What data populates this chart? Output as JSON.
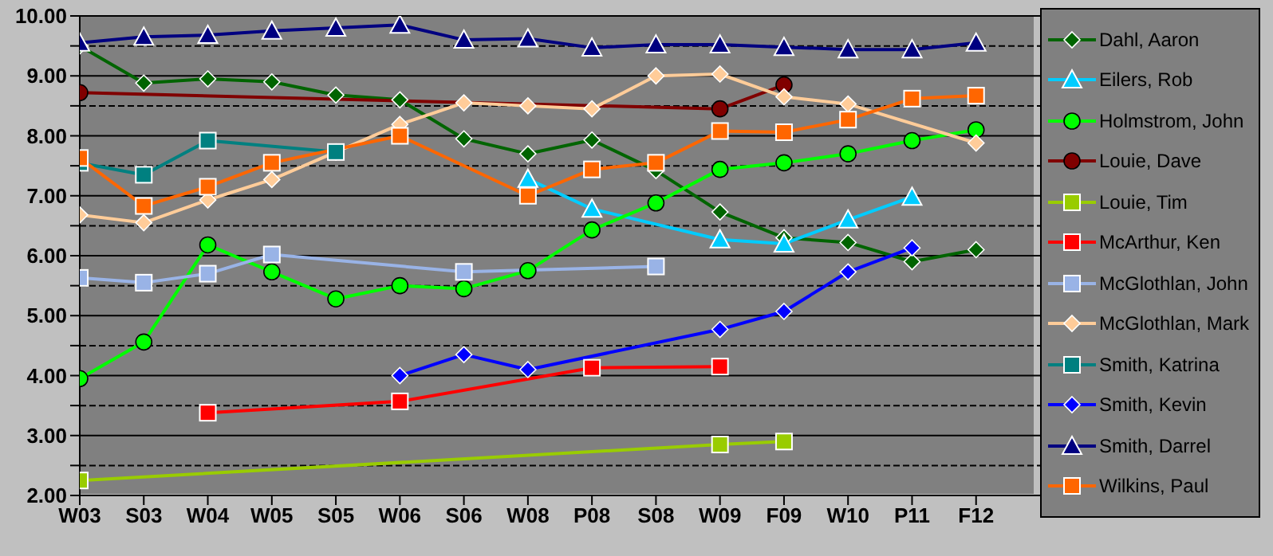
{
  "chart_data": {
    "type": "line",
    "categories": [
      "W03",
      "S03",
      "W04",
      "W05",
      "S05",
      "W06",
      "S06",
      "W08",
      "P08",
      "S08",
      "W09",
      "F09",
      "W10",
      "P11",
      "F12"
    ],
    "ylim": [
      2,
      10
    ],
    "yticks": [
      {
        "value": 2,
        "label": "2.00"
      },
      {
        "value": 2.5,
        "label": null
      },
      {
        "value": 3,
        "label": "3.00"
      },
      {
        "value": 3.5,
        "label": null
      },
      {
        "value": 4,
        "label": "4.00"
      },
      {
        "value": 4.5,
        "label": null
      },
      {
        "value": 5,
        "label": "5.00"
      },
      {
        "value": 5.5,
        "label": null
      },
      {
        "value": 6,
        "label": "6.00"
      },
      {
        "value": 6.5,
        "label": null
      },
      {
        "value": 7,
        "label": "7.00"
      },
      {
        "value": 7.5,
        "label": null
      },
      {
        "value": 8,
        "label": "8.00"
      },
      {
        "value": 8.5,
        "label": null
      },
      {
        "value": 9,
        "label": "9.00"
      },
      {
        "value": 9.5,
        "label": null
      },
      {
        "value": 10,
        "label": "10.00"
      }
    ],
    "grid": "y",
    "legend": "right",
    "series": [
      {
        "name": "Dahl, Aaron",
        "color": "#006400",
        "marker": "diamond",
        "values": [
          9.5,
          8.88,
          8.95,
          8.9,
          8.68,
          8.6,
          7.95,
          7.7,
          7.93,
          7.42,
          6.73,
          6.3,
          6.22,
          5.9,
          6.1
        ]
      },
      {
        "name": "Eilers, Rob",
        "color": "#00ccff",
        "marker": "triangle",
        "values": [
          null,
          null,
          null,
          null,
          null,
          null,
          null,
          7.28,
          6.78,
          null,
          6.27,
          6.2,
          6.6,
          6.98,
          null
        ]
      },
      {
        "name": "Holmstrom, John",
        "color": "#00ff00",
        "marker": "circle",
        "values": [
          3.95,
          4.56,
          6.18,
          5.73,
          5.28,
          5.5,
          5.45,
          5.75,
          6.43,
          6.88,
          7.44,
          7.55,
          7.7,
          7.92,
          8.1
        ]
      },
      {
        "name": "Louie, Dave",
        "color": "#800000",
        "marker": "circle",
        "values": [
          8.72,
          null,
          null,
          null,
          null,
          null,
          null,
          null,
          null,
          null,
          8.45,
          8.85,
          null,
          null,
          null
        ]
      },
      {
        "name": "Louie, Tim",
        "color": "#99cc00",
        "marker": "square",
        "values": [
          2.25,
          null,
          null,
          null,
          null,
          null,
          null,
          null,
          null,
          null,
          2.85,
          2.9,
          null,
          null,
          null
        ]
      },
      {
        "name": "McArthur, Ken",
        "color": "#ff0000",
        "marker": "square",
        "values": [
          null,
          null,
          3.38,
          null,
          null,
          3.57,
          null,
          null,
          4.13,
          null,
          4.15,
          null,
          null,
          null,
          null
        ]
      },
      {
        "name": "McGlothlan, John",
        "color": "#99b3e6",
        "marker": "square",
        "values": [
          5.63,
          5.55,
          5.7,
          6.02,
          null,
          null,
          5.73,
          null,
          null,
          5.82,
          null,
          null,
          null,
          null,
          null
        ]
      },
      {
        "name": "McGlothlan, Mark",
        "color": "#ffcc99",
        "marker": "diamond",
        "values": [
          6.68,
          6.55,
          6.93,
          7.27,
          7.73,
          8.19,
          8.55,
          8.5,
          8.45,
          9.0,
          9.03,
          8.65,
          8.53,
          null,
          7.88
        ]
      },
      {
        "name": "Smith, Katrina",
        "color": "#008080",
        "marker": "square",
        "values": [
          7.55,
          7.35,
          7.92,
          null,
          7.73,
          null,
          null,
          null,
          null,
          null,
          null,
          null,
          null,
          null,
          null
        ]
      },
      {
        "name": "Smith, Kevin",
        "color": "#0000ff",
        "marker": "diamond",
        "values": [
          null,
          null,
          null,
          null,
          null,
          4.0,
          4.35,
          4.1,
          null,
          null,
          4.77,
          5.07,
          5.73,
          6.13,
          null
        ]
      },
      {
        "name": "Smith, Darrel",
        "color": "#000080",
        "marker": "triangle",
        "values": [
          9.55,
          9.65,
          9.68,
          9.75,
          9.8,
          9.85,
          9.6,
          9.62,
          9.47,
          9.52,
          9.52,
          9.48,
          9.44,
          9.44,
          9.55
        ]
      },
      {
        "name": "Wilkins, Paul",
        "color": "#ff6600",
        "marker": "square",
        "values": [
          7.63,
          6.83,
          7.15,
          7.55,
          null,
          8.0,
          null,
          7.0,
          7.44,
          7.55,
          8.08,
          8.06,
          8.27,
          8.62,
          8.67
        ]
      }
    ]
  }
}
